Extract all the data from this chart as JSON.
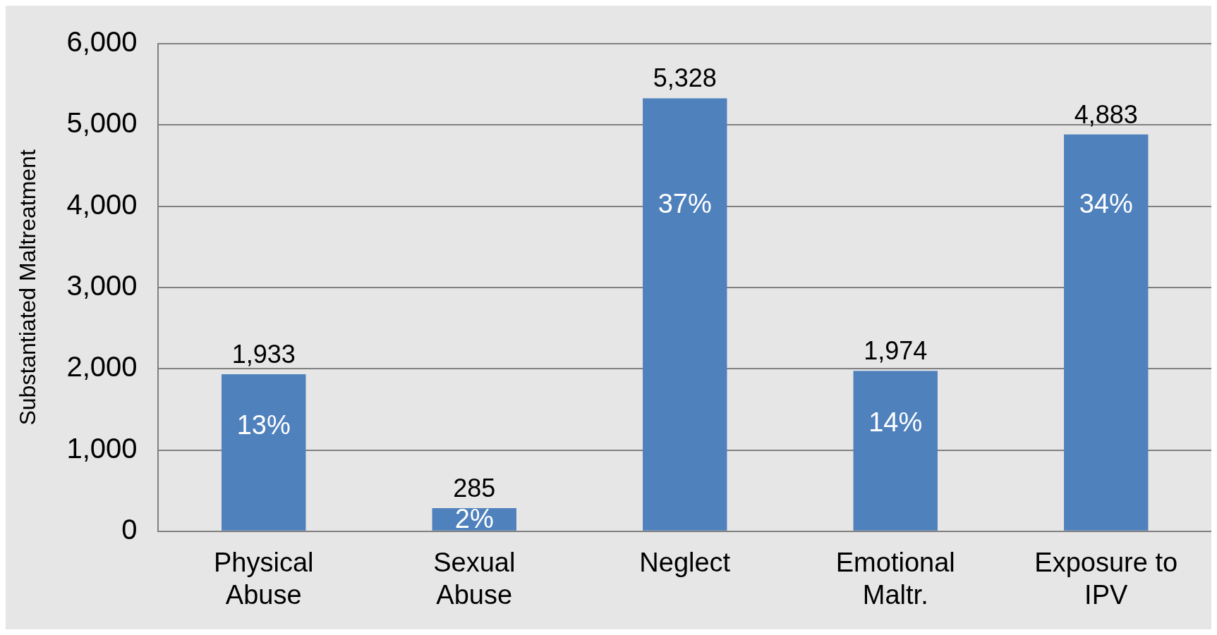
{
  "chart_data": {
    "type": "bar",
    "ylabel": "Substantiated Maltreatment",
    "categories": [
      "Physical Abuse",
      "Sexual Abuse",
      "Neglect",
      "Emotional Maltr.",
      "Exposure to IPV"
    ],
    "values": [
      1933,
      285,
      5328,
      1974,
      4883
    ],
    "value_labels": [
      "1,933",
      "285",
      "5,328",
      "1,974",
      "4,883"
    ],
    "color": "#4f81bd",
    "ylim": [
      0,
      6000
    ],
    "yticks": [
      {
        "value": 0,
        "label": "0"
      },
      {
        "value": 1000,
        "label": "1,000"
      },
      {
        "value": 2000,
        "label": "2,000"
      },
      {
        "value": 3000,
        "label": "3,000"
      },
      {
        "value": 4000,
        "label": "4,000"
      },
      {
        "value": 5000,
        "label": "5,000"
      },
      {
        "value": 6000,
        "label": "6,000"
      }
    ],
    "grid": "y",
    "annotations": [
      "13%",
      "2%",
      "37%",
      "14%",
      "34%"
    ]
  }
}
